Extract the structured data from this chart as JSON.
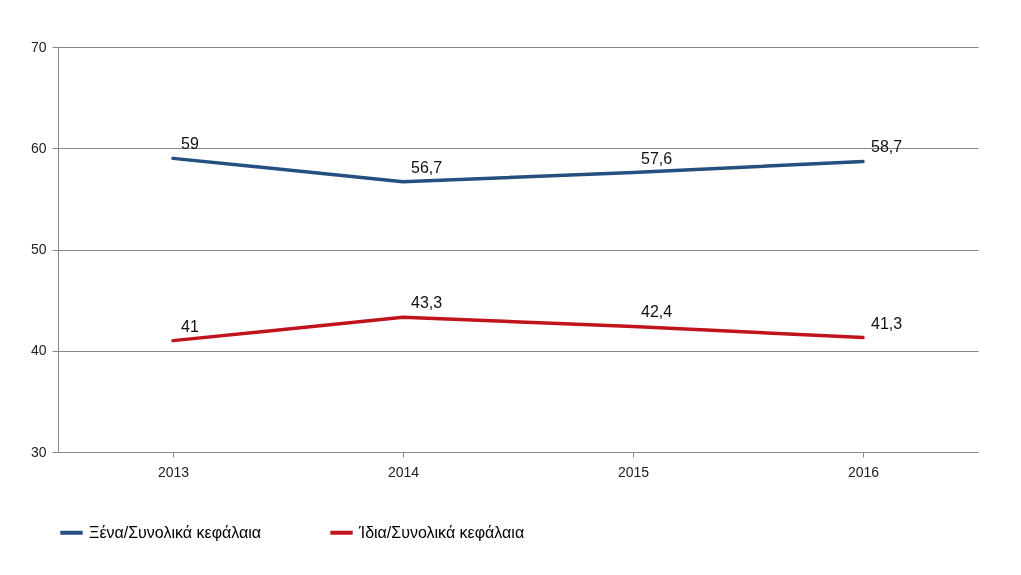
{
  "chart_data": {
    "type": "line",
    "categories": [
      "2013",
      "2014",
      "2015",
      "2016"
    ],
    "series": [
      {
        "name": "Ξένα/Συνολικά κεφάλαια",
        "color": "#254f7f",
        "values": [
          59,
          56.7,
          57.6,
          58.7
        ],
        "value_labels": [
          "59",
          "56,7",
          "57,6",
          "58,7"
        ]
      },
      {
        "name": "Ίδια/Συνολικά κεφάλαια",
        "color": "#c0141c",
        "values": [
          41,
          43.3,
          42.4,
          41.3
        ],
        "value_labels": [
          "41",
          "43,3",
          "42,4",
          "41,3"
        ]
      }
    ],
    "ylim": [
      30,
      70
    ],
    "yticks": [
      30,
      40,
      50,
      60,
      70
    ],
    "grid": "y",
    "legend": "bottom",
    "marker": "none",
    "line_style": "solid"
  }
}
